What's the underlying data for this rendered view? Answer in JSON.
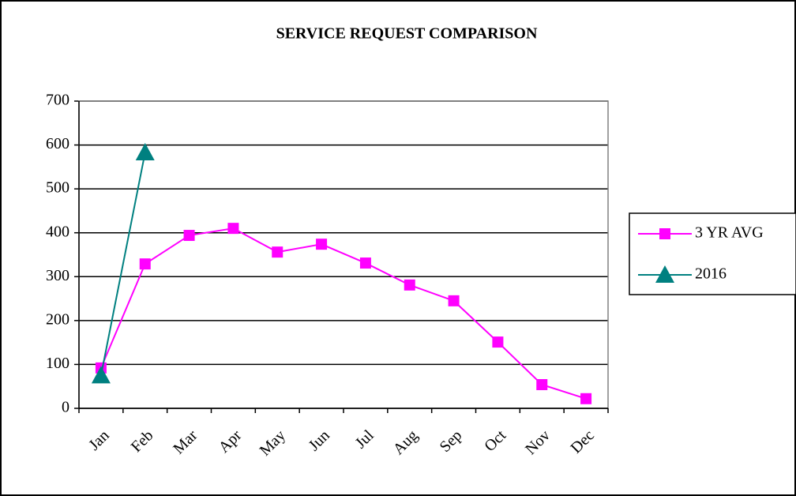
{
  "chart_data": {
    "type": "line",
    "title": "SERVICE REQUEST COMPARISON",
    "categories": [
      "Jan",
      "Feb",
      "Mar",
      "Apr",
      "May",
      "Jun",
      "Jul",
      "Aug",
      "Sep",
      "Oct",
      "Nov",
      "Dec"
    ],
    "series": [
      {
        "name": "3 YR AVG",
        "color": "#ff00ff",
        "marker": "square",
        "values": [
          92,
          329,
          394,
          410,
          356,
          374,
          331,
          281,
          245,
          151,
          54,
          22
        ]
      },
      {
        "name": "2016",
        "color": "#008080",
        "marker": "triangle",
        "values": [
          75,
          583,
          null,
          null,
          null,
          null,
          null,
          null,
          null,
          null,
          null,
          null
        ]
      }
    ],
    "ylim": [
      0,
      700
    ],
    "yticks": [
      0,
      100,
      200,
      300,
      400,
      500,
      600,
      700
    ],
    "grid": true,
    "legend": "right"
  }
}
